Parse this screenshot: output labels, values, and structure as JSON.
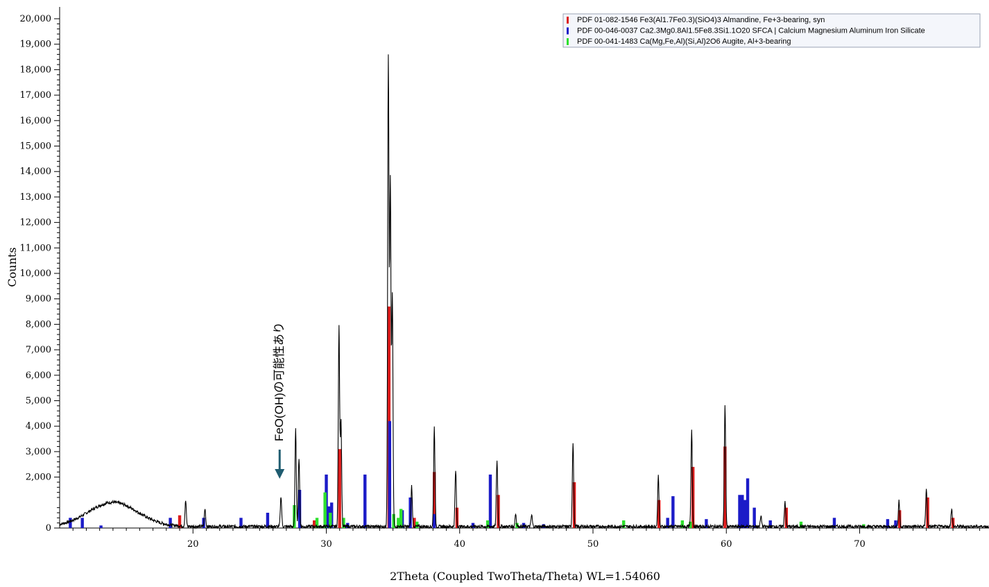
{
  "chart_data": {
    "type": "line",
    "title": "",
    "xlabel": "2Theta (Coupled TwoTheta/Theta) WL=1.54060",
    "ylabel": "Counts",
    "xlim": [
      10,
      79.7
    ],
    "ylim": [
      0,
      20300
    ],
    "grid": false,
    "legend_position": "top-right",
    "x_ticks": [
      20,
      30,
      40,
      50,
      60,
      70
    ],
    "x_tick_labels": [
      "20",
      "30",
      "40",
      "50",
      "60",
      "70"
    ],
    "y_ticks": [
      0,
      2000,
      3000,
      4000,
      5000,
      6000,
      7000,
      8000,
      9000,
      10000,
      11000,
      12000,
      13000,
      14000,
      15000,
      16000,
      17000,
      18000,
      19000,
      20000
    ],
    "y_tick_labels": [
      "0",
      "2,000",
      "3,000",
      "4,000",
      "5,000",
      "6,000",
      "7,000",
      "8,000",
      "9,000",
      "10,000",
      "11,000",
      "12,000",
      "13,000",
      "14,000",
      "15,000",
      "16,000",
      "17,000",
      "18,000",
      "19,000",
      "20,000"
    ],
    "pattern_color": "#000000",
    "background_hump": {
      "center": 14.0,
      "height": 950,
      "width": 2.6
    },
    "peaks": [
      [
        19.45,
        1000
      ],
      [
        20.9,
        700
      ],
      [
        26.6,
        1200
      ],
      [
        27.7,
        3800
      ],
      [
        27.95,
        2700
      ],
      [
        30.95,
        7900
      ],
      [
        31.1,
        4200
      ],
      [
        34.65,
        18400
      ],
      [
        34.8,
        13500
      ],
      [
        34.95,
        9000
      ],
      [
        36.4,
        1600
      ],
      [
        38.1,
        3900
      ],
      [
        39.7,
        2200
      ],
      [
        42.8,
        2600
      ],
      [
        44.2,
        500
      ],
      [
        45.4,
        450
      ],
      [
        48.5,
        3300
      ],
      [
        54.9,
        2000
      ],
      [
        57.4,
        3800
      ],
      [
        59.9,
        4800
      ],
      [
        62.6,
        400
      ],
      [
        64.4,
        1000
      ],
      [
        72.95,
        1000
      ],
      [
        75.0,
        1500
      ],
      [
        76.9,
        700
      ]
    ],
    "series": [
      {
        "name": "PDF 01-082-1546 Fe3(Al1.7Fe0.3)(SiO4)3 Almandine, Fe+3-bearing, syn",
        "color": "#dd1c1c",
        "sticks": [
          [
            19.0,
            500
          ],
          [
            29.1,
            300
          ],
          [
            31.0,
            3100
          ],
          [
            34.7,
            8700
          ],
          [
            36.6,
            400
          ],
          [
            38.1,
            2200
          ],
          [
            39.8,
            800
          ],
          [
            42.9,
            1300
          ],
          [
            48.6,
            1800
          ],
          [
            54.95,
            1100
          ],
          [
            57.5,
            2400
          ],
          [
            59.9,
            3200
          ],
          [
            64.5,
            800
          ],
          [
            73.0,
            700
          ],
          [
            75.1,
            1200
          ],
          [
            77.0,
            400
          ]
        ]
      },
      {
        "name": "PDF 00-046-0037 Ca2.3Mg0.8Al1.5Fe8.3Si1.1O20 SFCA | Calcium Magnesium Aluminum Iron Silicate",
        "color": "#1c1cc8",
        "sticks": [
          [
            10.8,
            400
          ],
          [
            11.7,
            400
          ],
          [
            13.1,
            100
          ],
          [
            18.3,
            400
          ],
          [
            20.8,
            400
          ],
          [
            23.6,
            400
          ],
          [
            25.6,
            600
          ],
          [
            28.0,
            1500
          ],
          [
            30.0,
            2100
          ],
          [
            30.2,
            850
          ],
          [
            30.4,
            1000
          ],
          [
            31.6,
            200
          ],
          [
            32.9,
            2100
          ],
          [
            34.75,
            4200
          ],
          [
            35.7,
            700
          ],
          [
            36.3,
            1200
          ],
          [
            38.1,
            550
          ],
          [
            41.0,
            200
          ],
          [
            42.3,
            2100
          ],
          [
            44.8,
            200
          ],
          [
            46.3,
            150
          ],
          [
            55.6,
            400
          ],
          [
            56.0,
            1250
          ],
          [
            58.5,
            350
          ],
          [
            61.0,
            1300
          ],
          [
            61.2,
            1300
          ],
          [
            61.4,
            1100
          ],
          [
            61.6,
            1950
          ],
          [
            62.1,
            800
          ],
          [
            63.3,
            300
          ],
          [
            68.1,
            400
          ],
          [
            72.1,
            350
          ],
          [
            72.7,
            300
          ]
        ]
      },
      {
        "name": "PDF 00-041-1483 Ca(Mg,Fe,Al)(Si,Al)2O6 Augite, Al+3-bearing",
        "color": "#2ee02e",
        "sticks": [
          [
            27.6,
            900
          ],
          [
            29.3,
            400
          ],
          [
            29.9,
            1400
          ],
          [
            30.3,
            600
          ],
          [
            31.3,
            400
          ],
          [
            35.05,
            550
          ],
          [
            35.4,
            400
          ],
          [
            35.6,
            750
          ],
          [
            36.8,
            250
          ],
          [
            42.1,
            300
          ],
          [
            44.3,
            200
          ],
          [
            52.3,
            300
          ],
          [
            56.7,
            300
          ],
          [
            57.3,
            250
          ],
          [
            65.6,
            250
          ],
          [
            70.3,
            150
          ]
        ]
      }
    ],
    "annotations": [
      {
        "text": "FeO(OH)の可能性あり",
        "x": 26.5,
        "arrow_color": "#1f5c70"
      }
    ]
  }
}
